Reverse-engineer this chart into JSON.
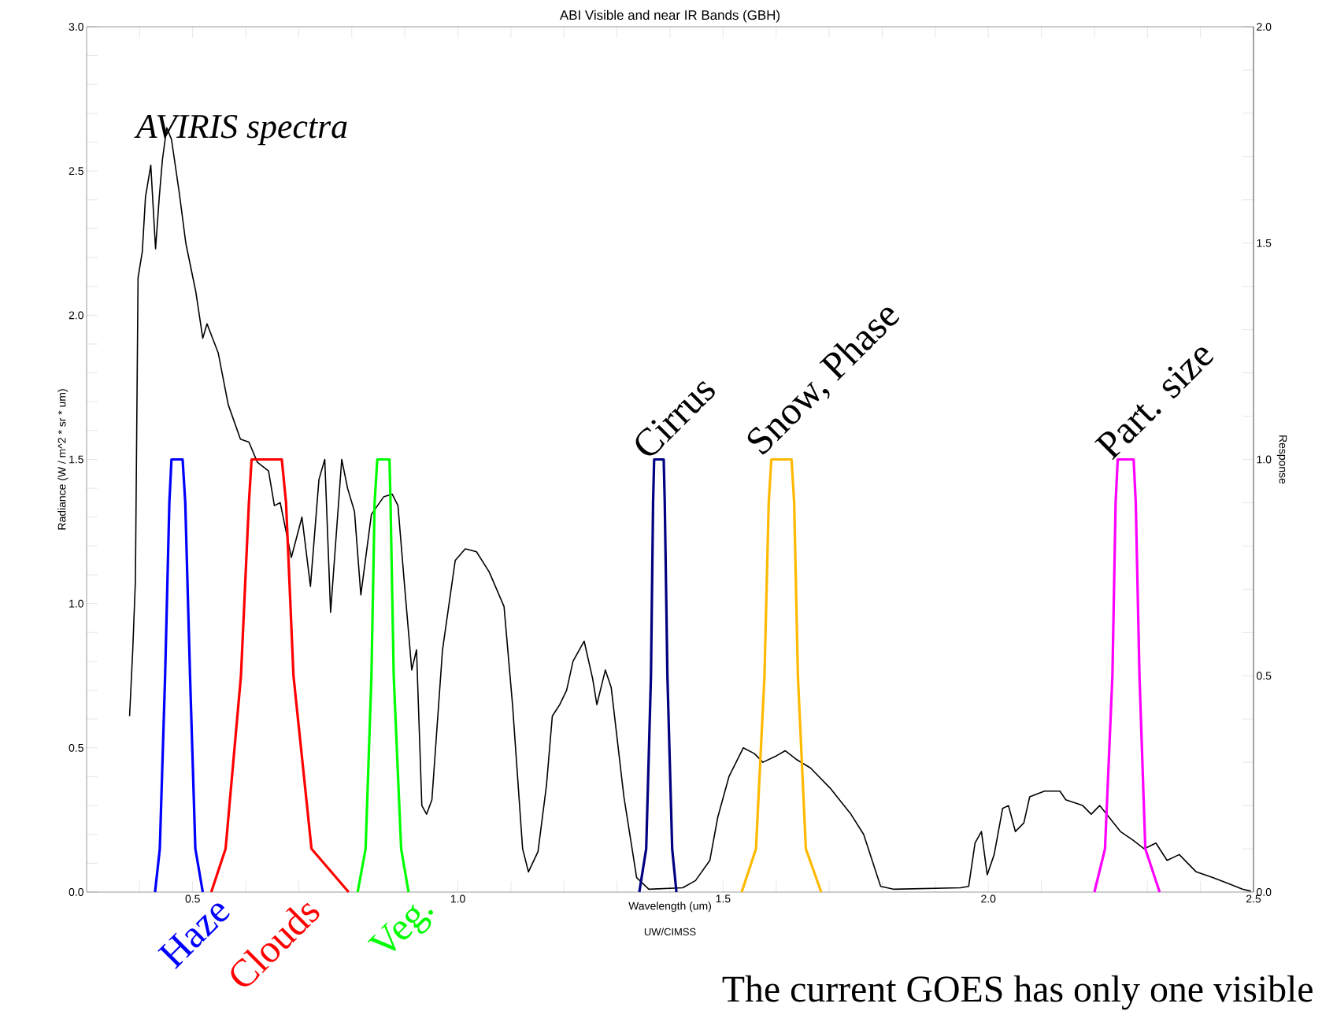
{
  "chart_data": {
    "type": "line",
    "title": "ABI Visible and near IR Bands (GBH)",
    "xlabel": "Wavelength (um)",
    "ylabel": "Radiance (W / m^2 * sr * um)",
    "y2label": "Response",
    "xlim": [
      0.3,
      2.5
    ],
    "ylim": [
      0,
      3.0
    ],
    "y2lim": [
      0,
      2.0
    ],
    "xticks": [
      {
        "value": 0.4,
        "label": null
      },
      {
        "value": 0.5,
        "label": "0.5"
      },
      {
        "value": 0.6,
        "label": null
      },
      {
        "value": 0.7,
        "label": null
      },
      {
        "value": 0.8,
        "label": null
      },
      {
        "value": 0.9,
        "label": null
      },
      {
        "value": 1.0,
        "label": "1.0"
      },
      {
        "value": 1.1,
        "label": null
      },
      {
        "value": 1.2,
        "label": null
      },
      {
        "value": 1.3,
        "label": null
      },
      {
        "value": 1.4,
        "label": null
      },
      {
        "value": 1.5,
        "label": "1.5"
      },
      {
        "value": 1.6,
        "label": null
      },
      {
        "value": 1.7,
        "label": null
      },
      {
        "value": 1.8,
        "label": null
      },
      {
        "value": 1.9,
        "label": null
      },
      {
        "value": 2.0,
        "label": "2.0"
      },
      {
        "value": 2.1,
        "label": null
      },
      {
        "value": 2.2,
        "label": null
      },
      {
        "value": 2.3,
        "label": null
      },
      {
        "value": 2.4,
        "label": null
      },
      {
        "value": 2.5,
        "label": "2.5"
      }
    ],
    "yticks": [
      {
        "value": 0.0,
        "label": "0.0"
      },
      {
        "value": 0.1,
        "label": null
      },
      {
        "value": 0.2,
        "label": null
      },
      {
        "value": 0.3,
        "label": null
      },
      {
        "value": 0.4,
        "label": null
      },
      {
        "value": 0.5,
        "label": "0.5"
      },
      {
        "value": 0.6,
        "label": null
      },
      {
        "value": 0.7,
        "label": null
      },
      {
        "value": 0.8,
        "label": null
      },
      {
        "value": 0.9,
        "label": null
      },
      {
        "value": 1.0,
        "label": "1.0"
      },
      {
        "value": 1.1,
        "label": null
      },
      {
        "value": 1.2,
        "label": null
      },
      {
        "value": 1.3,
        "label": null
      },
      {
        "value": 1.4,
        "label": null
      },
      {
        "value": 1.5,
        "label": "1.5"
      },
      {
        "value": 1.6,
        "label": null
      },
      {
        "value": 1.7,
        "label": null
      },
      {
        "value": 1.8,
        "label": null
      },
      {
        "value": 1.9,
        "label": null
      },
      {
        "value": 2.0,
        "label": "2.0"
      },
      {
        "value": 2.1,
        "label": null
      },
      {
        "value": 2.2,
        "label": null
      },
      {
        "value": 2.3,
        "label": null
      },
      {
        "value": 2.4,
        "label": null
      },
      {
        "value": 2.5,
        "label": "2.5"
      },
      {
        "value": 2.6,
        "label": null
      },
      {
        "value": 2.7,
        "label": null
      },
      {
        "value": 2.8,
        "label": null
      },
      {
        "value": 2.9,
        "label": null
      },
      {
        "value": 3.0,
        "label": "3.0"
      }
    ],
    "y2ticks": [
      {
        "value": 0.0,
        "label": "0.0"
      },
      {
        "value": 0.1,
        "label": null
      },
      {
        "value": 0.2,
        "label": null
      },
      {
        "value": 0.3,
        "label": null
      },
      {
        "value": 0.4,
        "label": null
      },
      {
        "value": 0.5,
        "label": "0.5"
      },
      {
        "value": 0.6,
        "label": null
      },
      {
        "value": 0.7,
        "label": null
      },
      {
        "value": 0.8,
        "label": null
      },
      {
        "value": 0.9,
        "label": null
      },
      {
        "value": 1.0,
        "label": "1.0"
      },
      {
        "value": 1.1,
        "label": null
      },
      {
        "value": 1.2,
        "label": null
      },
      {
        "value": 1.3,
        "label": null
      },
      {
        "value": 1.4,
        "label": null
      },
      {
        "value": 1.5,
        "label": "1.5"
      },
      {
        "value": 1.6,
        "label": null
      },
      {
        "value": 1.7,
        "label": null
      },
      {
        "value": 1.8,
        "label": null
      },
      {
        "value": 1.9,
        "label": null
      },
      {
        "value": 2.0,
        "label": "2.0"
      }
    ],
    "series": [
      {
        "name": "AVIRIS spectra",
        "color": "#000000",
        "x": [
          0.381,
          0.387,
          0.392,
          0.397,
          0.405,
          0.411,
          0.421,
          0.43,
          0.437,
          0.443,
          0.451,
          0.46,
          0.475,
          0.487,
          0.506,
          0.519,
          0.527,
          0.548,
          0.567,
          0.59,
          0.606,
          0.622,
          0.643,
          0.654,
          0.665,
          0.686,
          0.706,
          0.722,
          0.738,
          0.749,
          0.76,
          0.781,
          0.792,
          0.805,
          0.817,
          0.837,
          0.86,
          0.876,
          0.887,
          0.9,
          0.913,
          0.922,
          0.932,
          0.941,
          0.951,
          0.971,
          0.995,
          1.014,
          1.035,
          1.059,
          1.087,
          1.103,
          1.122,
          1.133,
          1.151,
          1.167,
          1.178,
          1.192,
          1.205,
          1.217,
          1.238,
          1.254,
          1.262,
          1.278,
          1.289,
          1.313,
          1.337,
          1.36,
          1.424,
          1.448,
          1.475,
          1.49,
          1.511,
          1.538,
          1.559,
          1.575,
          1.598,
          1.617,
          1.638,
          1.665,
          1.702,
          1.741,
          1.765,
          1.797,
          1.821,
          1.948,
          1.963,
          1.975,
          1.987,
          1.998,
          2.011,
          2.027,
          2.038,
          2.051,
          2.067,
          2.078,
          2.106,
          2.135,
          2.146,
          2.178,
          2.194,
          2.21,
          2.249,
          2.273,
          2.294,
          2.316,
          2.337,
          2.36,
          2.392,
          2.424,
          2.452,
          2.479,
          2.495
        ],
        "values": [
          0.61,
          0.84,
          1.08,
          2.13,
          2.22,
          2.41,
          2.52,
          2.23,
          2.41,
          2.54,
          2.65,
          2.61,
          2.42,
          2.25,
          2.08,
          1.92,
          1.97,
          1.87,
          1.69,
          1.57,
          1.56,
          1.49,
          1.46,
          1.34,
          1.35,
          1.16,
          1.3,
          1.06,
          1.43,
          1.5,
          0.97,
          1.5,
          1.4,
          1.32,
          1.03,
          1.31,
          1.37,
          1.38,
          1.34,
          1.05,
          0.77,
          0.84,
          0.3,
          0.27,
          0.32,
          0.84,
          1.15,
          1.19,
          1.18,
          1.11,
          0.99,
          0.65,
          0.15,
          0.07,
          0.14,
          0.37,
          0.61,
          0.65,
          0.7,
          0.8,
          0.87,
          0.74,
          0.65,
          0.77,
          0.71,
          0.33,
          0.05,
          0.01,
          0.015,
          0.04,
          0.11,
          0.26,
          0.4,
          0.5,
          0.48,
          0.45,
          0.47,
          0.49,
          0.46,
          0.43,
          0.36,
          0.27,
          0.2,
          0.02,
          0.01,
          0.015,
          0.02,
          0.17,
          0.21,
          0.06,
          0.13,
          0.29,
          0.3,
          0.21,
          0.24,
          0.33,
          0.35,
          0.35,
          0.32,
          0.3,
          0.27,
          0.3,
          0.21,
          0.18,
          0.15,
          0.17,
          0.11,
          0.13,
          0.07,
          0.05,
          0.03,
          0.01,
          0.003
        ]
      },
      {
        "name": "Haze",
        "color": "#0000ff",
        "axis": "y2",
        "x": [
          0.429,
          0.438,
          0.448,
          0.456,
          0.46,
          0.481,
          0.486,
          0.495,
          0.505,
          0.519
        ],
        "values": [
          0,
          0.1,
          0.5,
          0.9,
          1.0,
          1.0,
          0.9,
          0.5,
          0.1,
          0
        ]
      },
      {
        "name": "Clouds",
        "color": "#ff0000",
        "axis": "y2",
        "x": [
          0.535,
          0.562,
          0.591,
          0.606,
          0.611,
          0.668,
          0.676,
          0.69,
          0.724,
          0.794
        ],
        "values": [
          0,
          0.1,
          0.5,
          0.9,
          1.0,
          1.0,
          0.9,
          0.5,
          0.1,
          0
        ]
      },
      {
        "name": "Veg.",
        "color": "#00ff00",
        "axis": "y2",
        "x": [
          0.811,
          0.826,
          0.837,
          0.843,
          0.848,
          0.871,
          0.873,
          0.879,
          0.893,
          0.907
        ],
        "values": [
          0,
          0.1,
          0.5,
          0.9,
          1.0,
          1.0,
          0.9,
          0.5,
          0.1,
          0
        ]
      },
      {
        "color": "#000080",
        "axis": "y2",
        "x": [
          1.342,
          1.355,
          1.364,
          1.368,
          1.37,
          1.388,
          1.39,
          1.395,
          1.404,
          1.412
        ],
        "values": [
          0,
          0.1,
          0.5,
          0.9,
          1.0,
          1.0,
          0.9,
          0.5,
          0.1,
          0
        ]
      },
      {
        "color": "#ffb900",
        "axis": "y2",
        "x": [
          1.535,
          1.562,
          1.578,
          1.586,
          1.591,
          1.629,
          1.634,
          1.641,
          1.656,
          1.685
        ],
        "values": [
          0,
          0.1,
          0.5,
          0.9,
          1.0,
          1.0,
          0.9,
          0.5,
          0.1,
          0
        ]
      },
      {
        "color": "#ff00ff",
        "axis": "y2",
        "x": [
          2.2,
          2.22,
          2.234,
          2.24,
          2.244,
          2.274,
          2.278,
          2.285,
          2.296,
          2.323
        ],
        "values": [
          0,
          0.1,
          0.5,
          0.9,
          1.0,
          1.0,
          0.9,
          0.5,
          0.1,
          0
        ]
      }
    ],
    "annotations": [
      "The current GOES has only one visible",
      "UW/CIMSS",
      {
        "text": "Cirrus",
        "x": 1.37,
        "y": 1.5
      },
      {
        "text": "Snow, Phase",
        "x": 1.591,
        "y": 1.5
      },
      {
        "text": "Part. size",
        "x": 2.244,
        "y": 1.5
      }
    ]
  }
}
